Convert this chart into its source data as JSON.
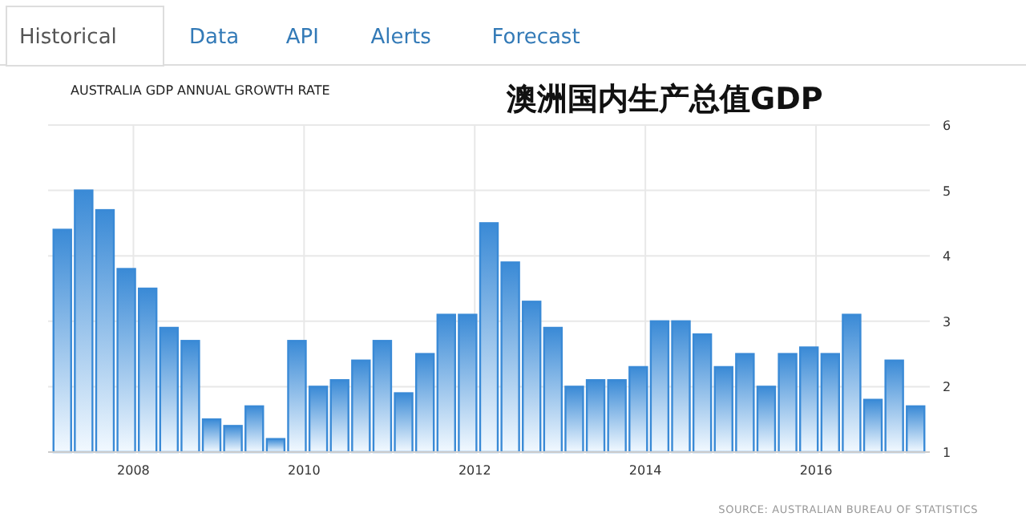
{
  "chart_data": {
    "type": "bar",
    "title": "AUSTRALIA GDP ANNUAL GROWTH RATE",
    "subtitle": "澳洲国内生产总值GDP",
    "annotations": [
      "Historical",
      "Data",
      "API",
      "Alerts",
      "Forecast",
      "SOURCE: AUSTRALIAN BUREAU OF STATISTICS"
    ],
    "x": [
      "2007-03",
      "2007-06",
      "2007-09",
      "2007-12",
      "2008-03",
      "2008-06",
      "2008-09",
      "2008-12",
      "2009-03",
      "2009-06",
      "2009-09",
      "2009-12",
      "2010-03",
      "2010-06",
      "2010-09",
      "2010-12",
      "2011-03",
      "2011-06",
      "2011-09",
      "2011-12",
      "2012-03",
      "2012-06",
      "2012-09",
      "2012-12",
      "2013-03",
      "2013-06",
      "2013-09",
      "2013-12",
      "2014-03",
      "2014-06",
      "2014-09",
      "2014-12",
      "2015-03",
      "2015-06",
      "2015-09",
      "2015-12",
      "2016-03",
      "2016-06",
      "2016-09",
      "2016-12",
      "2017-03"
    ],
    "series": [
      {
        "color": "#3a8ad6",
        "values": [
          4.4,
          5.0,
          4.7,
          3.8,
          3.5,
          2.9,
          2.7,
          1.5,
          1.4,
          1.7,
          1.2,
          2.7,
          2.0,
          2.1,
          2.4,
          2.7,
          1.9,
          2.5,
          3.1,
          3.1,
          4.5,
          3.9,
          3.3,
          2.9,
          2.0,
          2.1,
          2.1,
          2.3,
          3.0,
          3.0,
          2.8,
          2.3,
          2.5,
          2.0,
          2.5,
          2.6,
          2.5,
          3.1,
          1.8,
          2.4,
          1.7
        ]
      }
    ],
    "xlim": [
      "2007-01",
      "2017-05"
    ],
    "xticks": [
      {
        "value": "2008",
        "label": "2008"
      },
      {
        "value": "2010",
        "label": "2010"
      },
      {
        "value": "2012",
        "label": "2012"
      },
      {
        "value": "2014",
        "label": "2014"
      },
      {
        "value": "2016",
        "label": "2016"
      }
    ],
    "ylim": [
      1,
      6
    ],
    "yticks": [
      1,
      2,
      3,
      4,
      5,
      6
    ],
    "grid": true
  }
}
